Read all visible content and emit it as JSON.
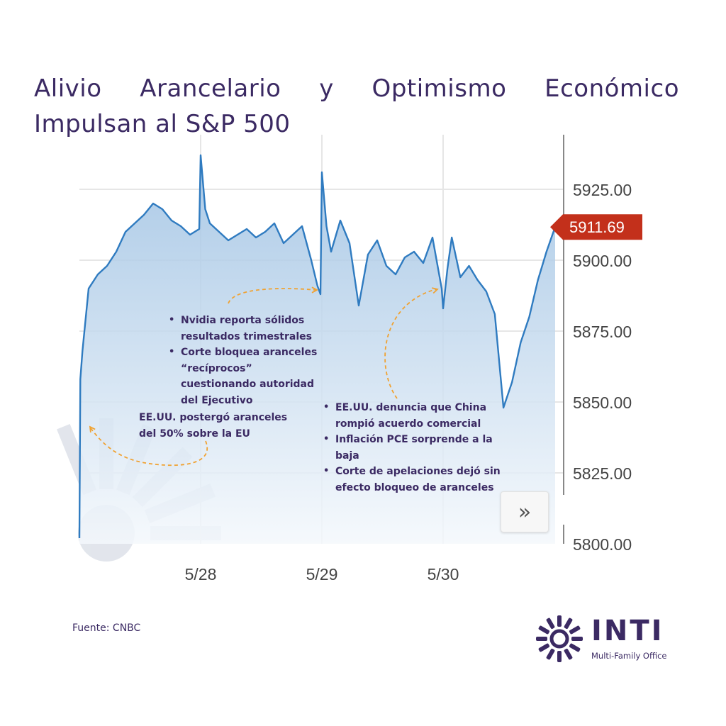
{
  "title": "Alivio Arancelario y Optimismo Económico Impulsan al S&P 500",
  "source": "Fuente: CNBC",
  "logo": {
    "name": "INTI",
    "subtitle": "Multi-Family Office",
    "icon": "sun-icon"
  },
  "next_button": {
    "label": "»",
    "icon": "double-chevron-right-icon"
  },
  "colors": {
    "text": "#3b2a63",
    "line": "#2f7bc0",
    "fill_top": "#9cc0e2",
    "fill_bottom": "#f4f8fc",
    "grid": "#e6e6e6",
    "price_tag": "#c3301b",
    "arrow": "#f0a232"
  },
  "annotations": {
    "note1": [
      "Nvidia reporta sólidos resultados trimestrales",
      "Corte bloquea aranceles “recíprocos” cuestionando autoridad del Ejecutivo"
    ],
    "note2": "EE.UU. postergó aranceles del 50% sobre la EU",
    "note3": [
      "EE.UU. denuncia que China rompió acuerdo comercial",
      "Inflación PCE sorprende a la baja",
      "Corte de apelaciones dejó sin efecto bloqueo de aranceles"
    ]
  },
  "chart_data": {
    "type": "line",
    "title": "",
    "xlabel": "",
    "ylabel": "",
    "ylim": [
      5800,
      5935
    ],
    "yticks": [
      "5800.00",
      "5825.00",
      "5850.00",
      "5875.00",
      "5900.00",
      "5925.00"
    ],
    "xticks": [
      "5/28",
      "5/29",
      "5/30"
    ],
    "last_price": "5911.69",
    "grid": true,
    "series": [
      {
        "x": [
          "5/27 09:30",
          "5/27 09:33",
          "5/27 09:40",
          "5/27 10:00",
          "5/27 10:30",
          "5/27 11:00",
          "5/27 11:30",
          "5/27 12:00",
          "5/27 12:30",
          "5/27 13:00",
          "5/27 13:30",
          "5/27 14:00",
          "5/27 14:30",
          "5/27 15:00",
          "5/27 15:30",
          "5/27 16:00",
          "5/28 09:30",
          "5/28 09:45",
          "5/28 10:00",
          "5/28 10:30",
          "5/28 11:00",
          "5/28 11:30",
          "5/28 12:00",
          "5/28 12:30",
          "5/28 13:00",
          "5/28 13:30",
          "5/28 14:00",
          "5/28 14:30",
          "5/28 15:00",
          "5/28 15:30",
          "5/28 15:50",
          "5/28 16:00",
          "5/29 09:30",
          "5/29 09:45",
          "5/29 10:00",
          "5/29 10:30",
          "5/29 11:00",
          "5/29 11:30",
          "5/29 12:00",
          "5/29 12:30",
          "5/29 13:00",
          "5/29 13:30",
          "5/29 14:00",
          "5/29 14:30",
          "5/29 15:00",
          "5/29 15:30",
          "5/29 16:00",
          "5/30 09:30",
          "5/30 09:45",
          "5/30 10:00",
          "5/30 10:30",
          "5/30 11:00",
          "5/30 11:30",
          "5/30 12:00",
          "5/30 12:30",
          "5/30 13:00",
          "5/30 13:30",
          "5/30 14:00",
          "5/30 14:30",
          "5/30 15:00",
          "5/30 15:30",
          "5/30 16:00"
        ],
        "values": [
          5802,
          5858,
          5868,
          5890,
          5895,
          5898,
          5903,
          5910,
          5913,
          5916,
          5920,
          5918,
          5914,
          5912,
          5909,
          5911,
          5937,
          5918,
          5913,
          5910,
          5907,
          5909,
          5911,
          5908,
          5910,
          5913,
          5906,
          5909,
          5912,
          5900,
          5891,
          5888,
          5931,
          5912,
          5903,
          5914,
          5906,
          5884,
          5902,
          5907,
          5898,
          5895,
          5901,
          5903,
          5899,
          5908,
          5890,
          5883,
          5897,
          5908,
          5894,
          5898,
          5893,
          5889,
          5881,
          5848,
          5857,
          5871,
          5880,
          5893,
          5903,
          5911.69
        ]
      }
    ]
  }
}
